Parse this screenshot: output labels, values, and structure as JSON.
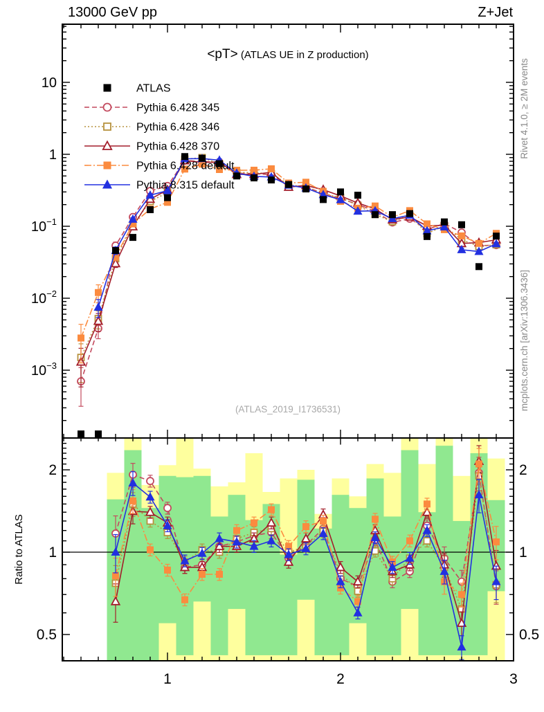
{
  "header": {
    "left": "13000 GeV pp",
    "right": "Z+Jet"
  },
  "title": {
    "main": "<pT>",
    "sub": " (ATLAS UE in Z production)"
  },
  "watermark": "(ATLAS_2019_I1736531)",
  "side_notes": {
    "top": "Rivet 4.1.0, ≥ 2M events",
    "bottom": "mcplots.cern.ch [arXiv:1306.3436]"
  },
  "axes": {
    "x_range": [
      0.392,
      3.0
    ],
    "x_major_ticks": [
      {
        "label": "1",
        "value": 1
      },
      {
        "label": "2",
        "value": 2
      },
      {
        "label": "3",
        "value": 3
      }
    ],
    "main_y_range": [
      0.000115,
      64
    ],
    "main_y_ticks": [
      {
        "label": "10",
        "exp": null,
        "value": 10
      },
      {
        "label": "1",
        "exp": null,
        "value": 1
      },
      {
        "label": "10",
        "exp": "−1",
        "value": 0.1
      },
      {
        "label": "10",
        "exp": "−2",
        "value": 0.01
      },
      {
        "label": "10",
        "exp": "−3",
        "value": 0.001
      }
    ],
    "ratio_y_range": [
      0.4,
      2.62
    ],
    "ratio_y_ticks": [
      {
        "label": "2",
        "value": 2
      },
      {
        "label": "1",
        "value": 1
      },
      {
        "label": "0.5",
        "value": 0.5
      }
    ],
    "ratio_ylabel": "Ratio to ATLAS"
  },
  "colors": {
    "atlas": "#000000",
    "band_green": "#90e890",
    "band_yellow": "#feff9e",
    "note_gray": "#8a8a8a",
    "watermark_gray": "#a8a8a8"
  },
  "chart_data": {
    "type": "line",
    "x": [
      0.5,
      0.6,
      0.7,
      0.8,
      0.9,
      1.0,
      1.1,
      1.2,
      1.3,
      1.4,
      1.5,
      1.6,
      1.7,
      1.8,
      1.9,
      2.0,
      2.1,
      2.2,
      2.3,
      2.4,
      2.5,
      2.6,
      2.7,
      2.8,
      2.9
    ],
    "atlas": {
      "label": "ATLAS",
      "marker": "square",
      "filled": true,
      "color": "#000000",
      "values": [
        0.00013,
        0.00013,
        0.046,
        0.07,
        0.17,
        0.25,
        0.93,
        0.88,
        0.74,
        0.5,
        0.47,
        0.44,
        0.38,
        0.33,
        0.235,
        0.3,
        0.27,
        0.145,
        0.145,
        0.15,
        0.072,
        0.115,
        0.105,
        0.0275,
        0.073
      ]
    },
    "mc_series": [
      {
        "id": "pythia-6428-345",
        "label": "Pythia 6.428 345",
        "color": "#c34a5e",
        "dash": "7,4",
        "marker": "circle",
        "filled": false,
        "low_bins": [
          0.0007,
          0.0038
        ],
        "ratio": [
          1.17,
          1.92,
          1.82,
          1.45,
          0.88,
          0.9,
          1.05,
          1.09,
          1.15,
          1.18,
          0.95,
          1.06,
          1.22,
          0.8,
          0.75,
          1.11,
          0.78,
          0.85,
          1.25,
          0.95,
          0.78,
          1.95,
          0.75
        ]
      },
      {
        "id": "pythia-6428-346",
        "label": "Pythia 6.428 346",
        "color": "#b6913d",
        "dash": "2,3",
        "marker": "square",
        "filled": false,
        "low_bins": [
          0.0015,
          0.0052
        ],
        "ratio": [
          0.77,
          1.5,
          1.3,
          1.18,
          0.92,
          1.02,
          1.0,
          1.12,
          1.18,
          1.22,
          1.0,
          1.05,
          1.19,
          0.84,
          0.72,
          1.01,
          0.8,
          0.95,
          1.1,
          0.88,
          0.62,
          1.9,
          0.76
        ]
      },
      {
        "id": "pythia-6428-370",
        "label": "Pythia 6.428 370",
        "color": "#a31d2a",
        "dash": null,
        "marker": "triangle",
        "filled": false,
        "low_bins": [
          0.0013,
          0.0048
        ],
        "ratio": [
          0.66,
          1.41,
          1.4,
          1.28,
          0.88,
          0.88,
          1.05,
          1.05,
          1.12,
          1.28,
          0.92,
          1.12,
          1.37,
          0.88,
          0.78,
          1.2,
          0.85,
          0.9,
          1.4,
          0.9,
          0.55,
          2.15,
          0.89
        ]
      },
      {
        "id": "pythia-6428-default",
        "label": "Pythia 6.428 default",
        "color": "#fb8b3f",
        "dash": "10,3,2,3",
        "marker": "square",
        "filled": true,
        "low_bins": [
          0.0028,
          0.012
        ],
        "ratio": [
          0.82,
          1.54,
          1.02,
          0.86,
          0.67,
          0.83,
          0.83,
          1.2,
          1.28,
          1.43,
          1.05,
          1.24,
          1.3,
          0.74,
          0.66,
          1.32,
          0.92,
          1.1,
          1.5,
          0.78,
          0.7,
          2.1,
          1.09
        ]
      },
      {
        "id": "pythia-8315-default",
        "label": "Pythia 8.315 default",
        "color": "#2230e0",
        "dash": null,
        "marker": "triangle",
        "filled": true,
        "low_bins": [
          null,
          0.0075
        ],
        "ratio": [
          1.0,
          1.79,
          1.59,
          1.25,
          0.93,
          0.99,
          1.12,
          1.09,
          1.05,
          1.1,
          0.98,
          1.03,
          1.17,
          0.78,
          0.6,
          1.13,
          0.88,
          0.95,
          1.2,
          0.85,
          0.45,
          1.62,
          0.78
        ]
      }
    ],
    "ratio_bands": [
      {
        "x": 0.65,
        "green": [
          0.4,
          1.56
        ],
        "yellow": [
          0.4,
          1.95
        ]
      },
      {
        "x": 0.75,
        "green": [
          0.4,
          2.36
        ],
        "yellow": [
          0.4,
          2.62
        ]
      },
      {
        "x": 0.85,
        "green": [
          0.4,
          1.45
        ],
        "yellow": [
          0.4,
          1.76
        ]
      },
      {
        "x": 0.95,
        "green": [
          0.55,
          1.9
        ],
        "yellow": [
          0.4,
          2.08
        ]
      },
      {
        "x": 1.05,
        "green": [
          0.42,
          1.88
        ],
        "yellow": [
          0.4,
          2.62
        ]
      },
      {
        "x": 1.15,
        "green": [
          0.66,
          1.9
        ],
        "yellow": [
          0.4,
          2.02
        ]
      },
      {
        "x": 1.25,
        "green": [
          0.42,
          1.35
        ],
        "yellow": [
          0.4,
          1.74
        ]
      },
      {
        "x": 1.35,
        "green": [
          0.62,
          1.62
        ],
        "yellow": [
          0.4,
          1.8
        ]
      },
      {
        "x": 1.45,
        "green": [
          0.42,
          1.31
        ],
        "yellow": [
          0.4,
          2.3
        ]
      },
      {
        "x": 1.55,
        "green": [
          0.42,
          1.5
        ],
        "yellow": [
          0.4,
          1.66
        ]
      },
      {
        "x": 1.65,
        "green": [
          0.42,
          0.98
        ],
        "yellow": [
          0.4,
          1.86
        ]
      },
      {
        "x": 1.75,
        "green": [
          0.67,
          1.84
        ],
        "yellow": [
          0.4,
          2.0
        ]
      },
      {
        "x": 1.85,
        "green": [
          0.42,
          1.22
        ],
        "yellow": [
          0.4,
          1.38
        ]
      },
      {
        "x": 1.95,
        "green": [
          0.42,
          1.62
        ],
        "yellow": [
          0.4,
          1.86
        ]
      },
      {
        "x": 2.05,
        "green": [
          0.55,
          1.45
        ],
        "yellow": [
          0.4,
          1.6
        ]
      },
      {
        "x": 2.15,
        "green": [
          0.42,
          1.86
        ],
        "yellow": [
          0.4,
          2.1
        ]
      },
      {
        "x": 2.25,
        "green": [
          0.42,
          1.35
        ],
        "yellow": [
          0.4,
          1.95
        ]
      },
      {
        "x": 2.35,
        "green": [
          0.62,
          2.36
        ],
        "yellow": [
          0.4,
          2.62
        ]
      },
      {
        "x": 2.45,
        "green": [
          0.42,
          1.4
        ],
        "yellow": [
          0.4,
          2.1
        ]
      },
      {
        "x": 2.55,
        "green": [
          0.42,
          2.45
        ],
        "yellow": [
          0.4,
          2.62
        ]
      },
      {
        "x": 2.65,
        "green": [
          0.42,
          1.3
        ],
        "yellow": [
          0.4,
          1.9
        ]
      },
      {
        "x": 2.75,
        "green": [
          0.42,
          2.3
        ],
        "yellow": [
          0.4,
          2.62
        ]
      },
      {
        "x": 2.85,
        "green": [
          0.72,
          1.55
        ],
        "yellow": [
          0.4,
          2.2
        ]
      }
    ],
    "bin_width": 0.1,
    "legend_order": [
      "ATLAS",
      "Pythia 6.428 345",
      "Pythia 6.428 346",
      "Pythia 6.428 370",
      "Pythia 6.428 default",
      "Pythia 8.315 default"
    ]
  }
}
